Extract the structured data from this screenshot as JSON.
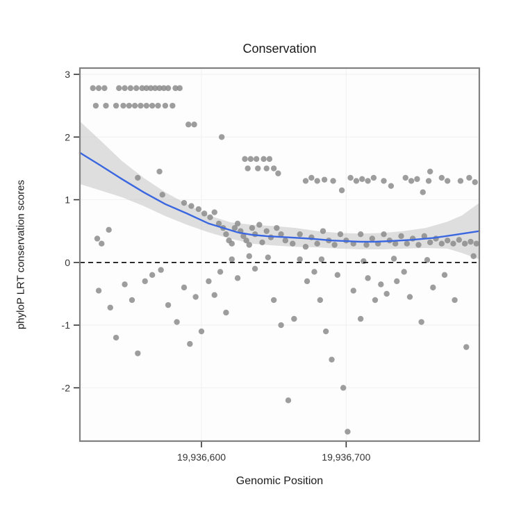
{
  "chart_data": {
    "type": "scatter",
    "title": "Conservation",
    "xlabel": "Genomic Position",
    "ylabel": "phyloP LRT conservation scores",
    "xlim": [
      19936516,
      19936792
    ],
    "ylim": [
      -2.85,
      3.1
    ],
    "x_ticks": [
      {
        "value": 19936600,
        "label": "19,936,600"
      },
      {
        "value": 19936700,
        "label": "19,936,700"
      }
    ],
    "y_ticks": [
      {
        "value": 3,
        "label": "3"
      },
      {
        "value": 2,
        "label": "2"
      },
      {
        "value": 1,
        "label": "1"
      },
      {
        "value": 0,
        "label": "0"
      },
      {
        "value": -1,
        "label": "-1"
      },
      {
        "value": -2,
        "label": "-2"
      }
    ],
    "zero_line": {
      "y": 0,
      "style": "dashed",
      "color": "#000000"
    },
    "style": {
      "point_color": "#8c8c8c",
      "point_opacity": 0.85,
      "point_radius": 4.2,
      "band_color": "#bfbfbf",
      "band_opacity": 0.5,
      "line_color": "#3a66e0",
      "panel_bg": "#fdfdfd",
      "panel_border": "#808080",
      "grid_color": "#f2f2f2",
      "tick_color": "#333333"
    },
    "points": [
      [
        19936525,
        2.78
      ],
      [
        19936529,
        2.78
      ],
      [
        19936533,
        2.78
      ],
      [
        19936543,
        2.78
      ],
      [
        19936547,
        2.78
      ],
      [
        19936551,
        2.78
      ],
      [
        19936555,
        2.78
      ],
      [
        19936559,
        2.78
      ],
      [
        19936562,
        2.78
      ],
      [
        19936565,
        2.78
      ],
      [
        19936568,
        2.78
      ],
      [
        19936571,
        2.78
      ],
      [
        19936574,
        2.78
      ],
      [
        19936577,
        2.78
      ],
      [
        19936582,
        2.78
      ],
      [
        19936585,
        2.78
      ],
      [
        19936527,
        2.5
      ],
      [
        19936534,
        2.5
      ],
      [
        19936541,
        2.5
      ],
      [
        19936546,
        2.5
      ],
      [
        19936550,
        2.5
      ],
      [
        19936554,
        2.5
      ],
      [
        19936558,
        2.5
      ],
      [
        19936562,
        2.5
      ],
      [
        19936566,
        2.5
      ],
      [
        19936570,
        2.5
      ],
      [
        19936575,
        2.5
      ],
      [
        19936580,
        2.5
      ],
      [
        19936591,
        2.2
      ],
      [
        19936595,
        2.2
      ],
      [
        19936614,
        2.0
      ],
      [
        19936630,
        1.65
      ],
      [
        19936634,
        1.65
      ],
      [
        19936638,
        1.65
      ],
      [
        19936643,
        1.65
      ],
      [
        19936647,
        1.65
      ],
      [
        19936632,
        1.5
      ],
      [
        19936639,
        1.5
      ],
      [
        19936645,
        1.5
      ],
      [
        19936650,
        1.5
      ],
      [
        19936653,
        1.42
      ],
      [
        19936556,
        1.35
      ],
      [
        19936571,
        1.45
      ],
      [
        19936573,
        1.08
      ],
      [
        19936588,
        0.95
      ],
      [
        19936593,
        0.9
      ],
      [
        19936598,
        0.85
      ],
      [
        19936602,
        0.78
      ],
      [
        19936606,
        0.72
      ],
      [
        19936609,
        0.8
      ],
      [
        19936672,
        1.3
      ],
      [
        19936676,
        1.35
      ],
      [
        19936680,
        1.3
      ],
      [
        19936685,
        1.32
      ],
      [
        19936691,
        1.3
      ],
      [
        19936703,
        1.35
      ],
      [
        19936707,
        1.3
      ],
      [
        19936711,
        1.33
      ],
      [
        19936715,
        1.3
      ],
      [
        19936719,
        1.35
      ],
      [
        19936726,
        1.3
      ],
      [
        19936731,
        1.22
      ],
      [
        19936741,
        1.35
      ],
      [
        19936745,
        1.3
      ],
      [
        19936749,
        1.33
      ],
      [
        19936757,
        1.3
      ],
      [
        19936766,
        1.35
      ],
      [
        19936770,
        1.3
      ],
      [
        19936779,
        1.3
      ],
      [
        19936785,
        1.35
      ],
      [
        19936789,
        1.28
      ],
      [
        19936697,
        1.15
      ],
      [
        19936753,
        1.12
      ],
      [
        19936758,
        1.45
      ],
      [
        19936612,
        0.62
      ],
      [
        19936615,
        0.55
      ],
      [
        19936617,
        0.45
      ],
      [
        19936619,
        0.35
      ],
      [
        19936621,
        0.3
      ],
      [
        19936623,
        0.55
      ],
      [
        19936625,
        0.62
      ],
      [
        19936627,
        0.5
      ],
      [
        19936629,
        0.42
      ],
      [
        19936631,
        0.35
      ],
      [
        19936633,
        0.28
      ],
      [
        19936635,
        0.55
      ],
      [
        19936637,
        0.45
      ],
      [
        19936640,
        0.6
      ],
      [
        19936642,
        0.32
      ],
      [
        19936645,
        0.5
      ],
      [
        19936648,
        0.4
      ],
      [
        19936652,
        0.55
      ],
      [
        19936655,
        0.45
      ],
      [
        19936658,
        0.35
      ],
      [
        19936663,
        0.3
      ],
      [
        19936668,
        0.45
      ],
      [
        19936672,
        0.25
      ],
      [
        19936676,
        0.4
      ],
      [
        19936680,
        0.3
      ],
      [
        19936684,
        0.5
      ],
      [
        19936688,
        0.35
      ],
      [
        19936692,
        0.28
      ],
      [
        19936696,
        0.45
      ],
      [
        19936700,
        0.35
      ],
      [
        19936705,
        0.3
      ],
      [
        19936710,
        0.45
      ],
      [
        19936714,
        0.28
      ],
      [
        19936718,
        0.38
      ],
      [
        19936722,
        0.3
      ],
      [
        19936726,
        0.45
      ],
      [
        19936730,
        0.35
      ],
      [
        19936734,
        0.3
      ],
      [
        19936738,
        0.42
      ],
      [
        19936742,
        0.3
      ],
      [
        19936746,
        0.38
      ],
      [
        19936750,
        0.28
      ],
      [
        19936754,
        0.42
      ],
      [
        19936758,
        0.32
      ],
      [
        19936762,
        0.38
      ],
      [
        19936766,
        0.3
      ],
      [
        19936770,
        0.35
      ],
      [
        19936774,
        0.3
      ],
      [
        19936778,
        0.36
      ],
      [
        19936782,
        0.3
      ],
      [
        19936786,
        0.33
      ],
      [
        19936790,
        0.3
      ],
      [
        19936528,
        0.38
      ],
      [
        19936531,
        0.3
      ],
      [
        19936536,
        0.52
      ],
      [
        19936529,
        -0.45
      ],
      [
        19936537,
        -0.72
      ],
      [
        19936541,
        -1.2
      ],
      [
        19936547,
        -0.35
      ],
      [
        19936552,
        -0.6
      ],
      [
        19936556,
        -1.45
      ],
      [
        19936561,
        -0.3
      ],
      [
        19936566,
        -0.2
      ],
      [
        19936572,
        -0.12
      ],
      [
        19936577,
        -0.68
      ],
      [
        19936583,
        -0.95
      ],
      [
        19936588,
        -0.4
      ],
      [
        19936592,
        -1.3
      ],
      [
        19936596,
        -0.55
      ],
      [
        19936600,
        -1.1
      ],
      [
        19936605,
        -0.3
      ],
      [
        19936609,
        -0.52
      ],
      [
        19936613,
        -0.15
      ],
      [
        19936617,
        -0.8
      ],
      [
        19936621,
        0.05
      ],
      [
        19936625,
        -0.25
      ],
      [
        19936633,
        0.1
      ],
      [
        19936637,
        -0.1
      ],
      [
        19936646,
        0.08
      ],
      [
        19936650,
        -0.6
      ],
      [
        19936655,
        -1.0
      ],
      [
        19936660,
        -2.2
      ],
      [
        19936664,
        -0.9
      ],
      [
        19936668,
        0.05
      ],
      [
        19936673,
        -0.3
      ],
      [
        19936678,
        -0.15
      ],
      [
        19936682,
        -0.6
      ],
      [
        19936686,
        -1.1
      ],
      [
        19936690,
        -1.55
      ],
      [
        19936694,
        -0.2
      ],
      [
        19936698,
        -2.0
      ],
      [
        19936701,
        -2.7
      ],
      [
        19936705,
        -0.45
      ],
      [
        19936710,
        -0.9
      ],
      [
        19936715,
        -0.25
      ],
      [
        19936720,
        -0.6
      ],
      [
        19936724,
        -0.35
      ],
      [
        19936728,
        -0.5
      ],
      [
        19936735,
        -0.3
      ],
      [
        19936740,
        -0.15
      ],
      [
        19936744,
        -0.55
      ],
      [
        19936752,
        -0.95
      ],
      [
        19936760,
        -0.4
      ],
      [
        19936768,
        -0.2
      ],
      [
        19936775,
        -0.6
      ],
      [
        19936783,
        -1.35
      ],
      [
        19936788,
        0.1
      ],
      [
        19936683,
        0.05
      ],
      [
        19936712,
        0.02
      ],
      [
        19936733,
        0.06
      ],
      [
        19936756,
        0.04
      ]
    ],
    "smooth_line": [
      [
        19936516,
        1.75
      ],
      [
        19936530,
        1.55
      ],
      [
        19936545,
        1.33
      ],
      [
        19936560,
        1.12
      ],
      [
        19936575,
        0.93
      ],
      [
        19936590,
        0.78
      ],
      [
        19936605,
        0.62
      ],
      [
        19936615,
        0.55
      ],
      [
        19936625,
        0.48
      ],
      [
        19936635,
        0.44
      ],
      [
        19936645,
        0.42
      ],
      [
        19936660,
        0.4
      ],
      [
        19936675,
        0.38
      ],
      [
        19936690,
        0.35
      ],
      [
        19936700,
        0.34
      ],
      [
        19936710,
        0.33
      ],
      [
        19936720,
        0.33
      ],
      [
        19936730,
        0.34
      ],
      [
        19936745,
        0.36
      ],
      [
        19936760,
        0.39
      ],
      [
        19936775,
        0.44
      ],
      [
        19936792,
        0.5
      ]
    ],
    "band_upper": [
      [
        19936516,
        2.25
      ],
      [
        19936530,
        1.95
      ],
      [
        19936545,
        1.62
      ],
      [
        19936560,
        1.35
      ],
      [
        19936575,
        1.12
      ],
      [
        19936590,
        0.93
      ],
      [
        19936605,
        0.75
      ],
      [
        19936620,
        0.64
      ],
      [
        19936635,
        0.6
      ],
      [
        19936650,
        0.58
      ],
      [
        19936665,
        0.55
      ],
      [
        19936680,
        0.5
      ],
      [
        19936695,
        0.47
      ],
      [
        19936710,
        0.46
      ],
      [
        19936725,
        0.47
      ],
      [
        19936740,
        0.5
      ],
      [
        19936755,
        0.55
      ],
      [
        19936770,
        0.65
      ],
      [
        19936780,
        0.75
      ],
      [
        19936792,
        0.95
      ]
    ],
    "band_lower": [
      [
        19936516,
        1.25
      ],
      [
        19936530,
        1.15
      ],
      [
        19936545,
        1.04
      ],
      [
        19936560,
        0.9
      ],
      [
        19936575,
        0.74
      ],
      [
        19936590,
        0.6
      ],
      [
        19936605,
        0.48
      ],
      [
        19936620,
        0.38
      ],
      [
        19936635,
        0.3
      ],
      [
        19936650,
        0.27
      ],
      [
        19936665,
        0.25
      ],
      [
        19936680,
        0.24
      ],
      [
        19936695,
        0.22
      ],
      [
        19936710,
        0.21
      ],
      [
        19936725,
        0.21
      ],
      [
        19936740,
        0.22
      ],
      [
        19936755,
        0.23
      ],
      [
        19936770,
        0.22
      ],
      [
        19936780,
        0.15
      ],
      [
        19936792,
        0.05
      ]
    ]
  }
}
